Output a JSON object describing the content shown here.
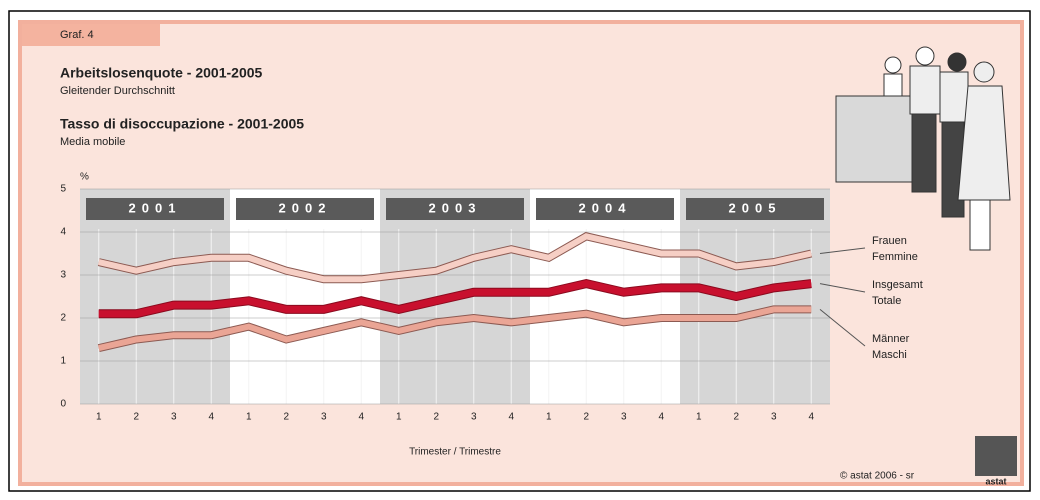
{
  "chart_data": {
    "type": "line",
    "tab": "Graf. 4",
    "title": "Arbeitslosenquote - 2001-2005",
    "subtitle": "Gleitender Durchschnitt",
    "title2": "Tasso di disoccupazione - 2001-2005",
    "subtitle2": "Media mobile",
    "y_unit": "%",
    "x_label": "Trimester / Trimestre",
    "credit": "© astat 2006 - sr",
    "logo": "astat",
    "groups": [
      "2001",
      "2002",
      "2003",
      "2004",
      "2005"
    ],
    "categories": [
      "1",
      "2",
      "3",
      "4",
      "1",
      "2",
      "3",
      "4",
      "1",
      "2",
      "3",
      "4",
      "1",
      "2",
      "3",
      "4",
      "1",
      "2",
      "3",
      "4"
    ],
    "series": [
      {
        "name": "Frauen",
        "name2": "Femmine",
        "color": "#f6cfc5",
        "outline": "#8c5a52",
        "values": [
          3.3,
          3.1,
          3.3,
          3.4,
          3.4,
          3.1,
          2.9,
          2.9,
          3.0,
          3.1,
          3.4,
          3.6,
          3.4,
          3.9,
          3.7,
          3.5,
          3.5,
          3.2,
          3.3,
          3.5
        ]
      },
      {
        "name": "Insgesamt",
        "name2": "Totale",
        "color": "#c8102e",
        "outline": "#8a0a1e",
        "values": [
          2.1,
          2.1,
          2.3,
          2.3,
          2.4,
          2.2,
          2.2,
          2.4,
          2.2,
          2.4,
          2.6,
          2.6,
          2.6,
          2.8,
          2.6,
          2.7,
          2.7,
          2.5,
          2.7,
          2.8
        ]
      },
      {
        "name": "Männer",
        "name2": "Maschi",
        "color": "#eaa595",
        "outline": "#8c5a52",
        "values": [
          1.3,
          1.5,
          1.6,
          1.6,
          1.8,
          1.5,
          1.7,
          1.9,
          1.7,
          1.9,
          2.0,
          1.9,
          2.0,
          2.1,
          1.9,
          2.0,
          2.0,
          2.0,
          2.2,
          2.2
        ]
      }
    ],
    "ylim": [
      0,
      5
    ],
    "yticks": [
      0,
      1,
      2,
      3,
      4,
      5
    ],
    "grid": true
  }
}
